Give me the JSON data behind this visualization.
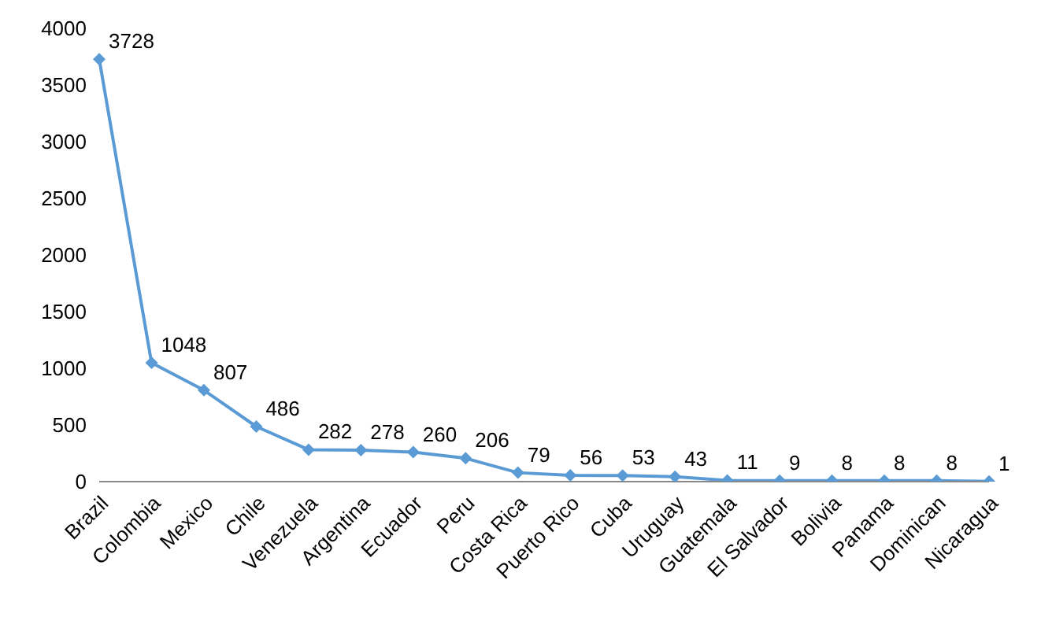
{
  "chart_data": {
    "type": "line",
    "categories": [
      "Brazil",
      "Colombia",
      "Mexico",
      "Chile",
      "Venezuela",
      "Argentina",
      "Ecuador",
      "Peru",
      "Costa Rica",
      "Puerto Rico",
      "Cuba",
      "Uruguay",
      "Guatemala",
      "El Salvador",
      "Bolivia",
      "Panama",
      "Dominican",
      "Nicaragua"
    ],
    "series": [
      {
        "color": "#5b9bd5",
        "values": [
          3728,
          1048,
          807,
          486,
          282,
          278,
          260,
          206,
          79,
          56,
          53,
          43,
          11,
          9,
          8,
          8,
          8,
          1
        ]
      }
    ],
    "ylim": [
      0,
      4000
    ],
    "yticks": [
      0,
      500,
      1000,
      1500,
      2000,
      2500,
      3000,
      3500,
      4000
    ],
    "grid": false,
    "marker": "diamond",
    "data_labels": true
  }
}
